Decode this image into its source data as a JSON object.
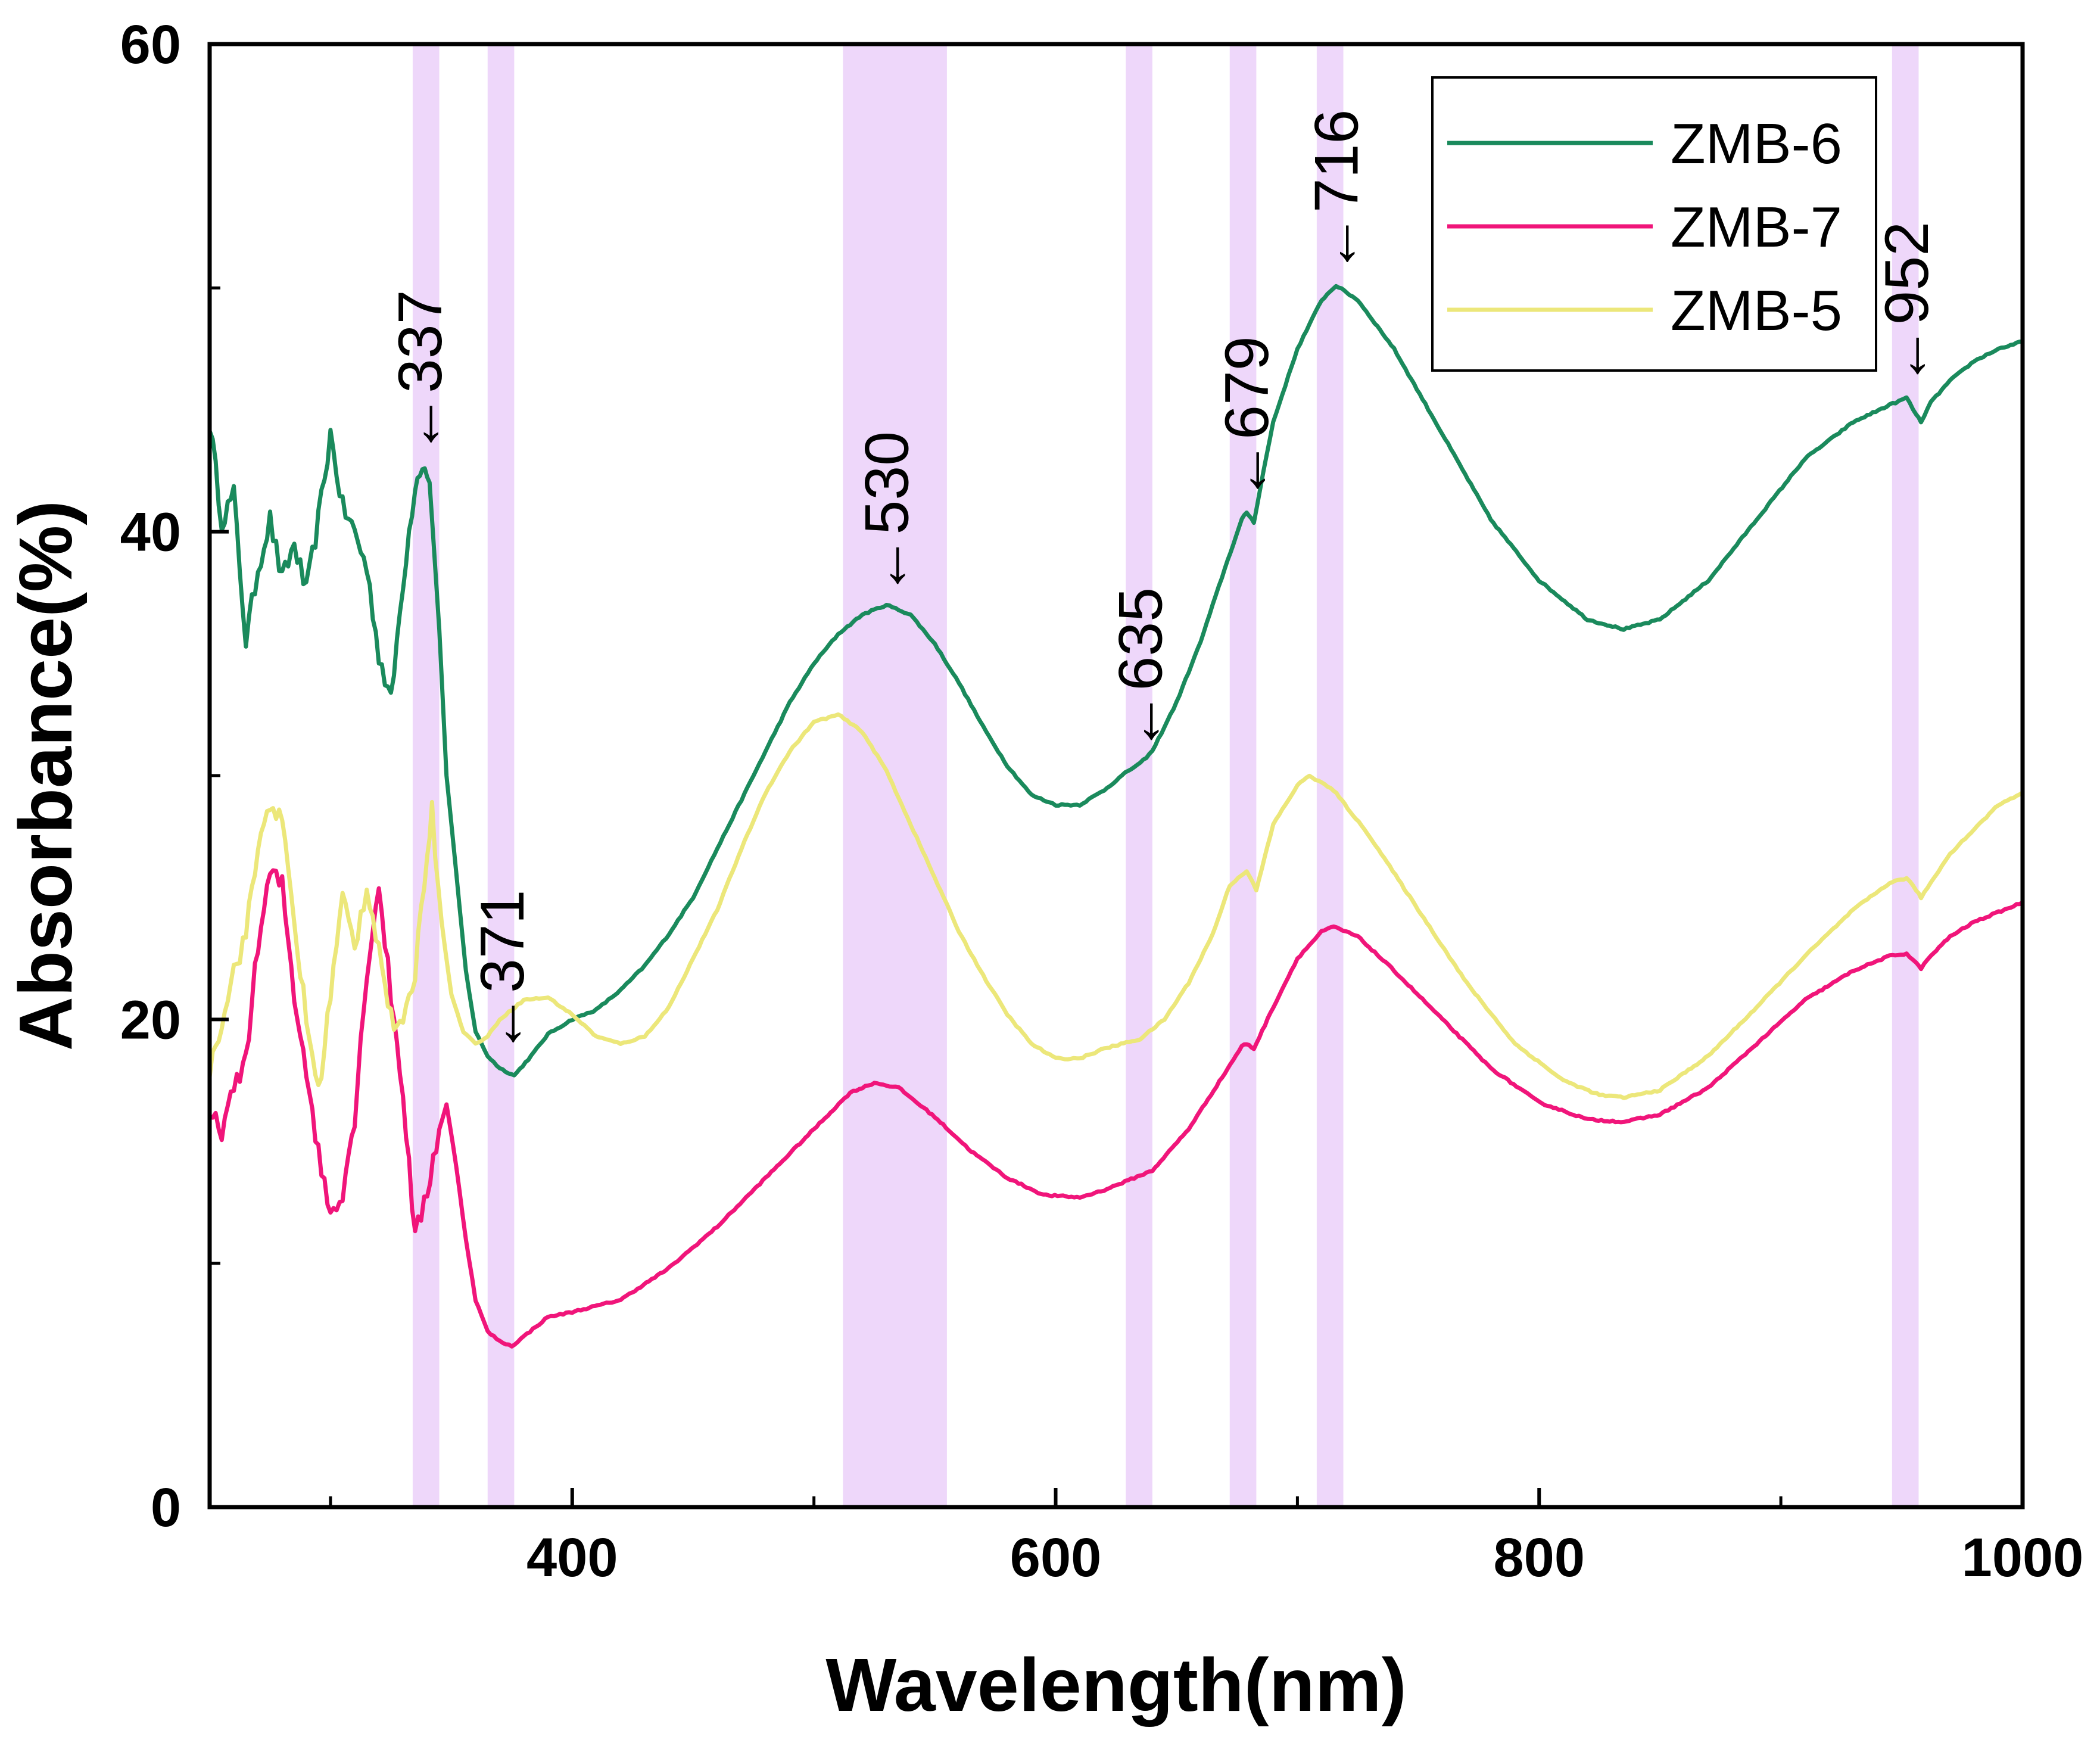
{
  "chart_data": {
    "type": "line",
    "title": "",
    "xlabel": "Wavelength(nm)",
    "ylabel": "Absorbance(%)",
    "xlim": [
      250,
      1000
    ],
    "ylim": [
      0,
      60
    ],
    "x_ticks": [
      400,
      600,
      800,
      1000
    ],
    "y_ticks": [
      0,
      20,
      40,
      60
    ],
    "x_minor_ticks": [
      300,
      500,
      700,
      900
    ],
    "y_minor_ticks": [
      10,
      30,
      50
    ],
    "x_tick_labels": [
      "400",
      "600",
      "800",
      "1000"
    ],
    "y_tick_labels": [
      "0",
      "20",
      "40",
      "60"
    ],
    "grid": false,
    "legend_position": "top-right",
    "highlight_bands": [
      {
        "from": 334,
        "to": 345
      },
      {
        "from": 365,
        "to": 376
      },
      {
        "from": 512,
        "to": 555
      },
      {
        "from": 629,
        "to": 640
      },
      {
        "from": 672,
        "to": 683
      },
      {
        "from": 708,
        "to": 719
      },
      {
        "from": 946,
        "to": 957
      }
    ],
    "series": [
      {
        "name": "ZMB-6",
        "color": "#1a8a5c",
        "noisy_until": 340,
        "points": [
          [
            250,
            44.5
          ],
          [
            255,
            40.5
          ],
          [
            260,
            41.5
          ],
          [
            265,
            35.5
          ],
          [
            270,
            38.5
          ],
          [
            275,
            40.5
          ],
          [
            280,
            38
          ],
          [
            285,
            39.5
          ],
          [
            290,
            37.5
          ],
          [
            295,
            40.5
          ],
          [
            300,
            44
          ],
          [
            305,
            41
          ],
          [
            310,
            40
          ],
          [
            315,
            38.5
          ],
          [
            320,
            35
          ],
          [
            325,
            33
          ],
          [
            330,
            38
          ],
          [
            335,
            42
          ],
          [
            338,
            42.8
          ],
          [
            341,
            42
          ],
          [
            345,
            36
          ],
          [
            348,
            30
          ],
          [
            352,
            26
          ],
          [
            356,
            22
          ],
          [
            360,
            19.5
          ],
          [
            365,
            18.5
          ],
          [
            370,
            18
          ],
          [
            376,
            17.7
          ],
          [
            383,
            18.5
          ],
          [
            390,
            19.4
          ],
          [
            400,
            20
          ],
          [
            410,
            20.4
          ],
          [
            420,
            21.2
          ],
          [
            430,
            22.2
          ],
          [
            440,
            23.5
          ],
          [
            450,
            25
          ],
          [
            460,
            27
          ],
          [
            470,
            29
          ],
          [
            480,
            31
          ],
          [
            490,
            33
          ],
          [
            500,
            34.6
          ],
          [
            510,
            35.8
          ],
          [
            520,
            36.6
          ],
          [
            530,
            37
          ],
          [
            540,
            36.6
          ],
          [
            550,
            35.4
          ],
          [
            560,
            33.8
          ],
          [
            570,
            32
          ],
          [
            580,
            30.4
          ],
          [
            590,
            29.2
          ],
          [
            600,
            28.8
          ],
          [
            610,
            28.8
          ],
          [
            620,
            29.4
          ],
          [
            630,
            30.2
          ],
          [
            635,
            30.5
          ],
          [
            640,
            31
          ],
          [
            650,
            33
          ],
          [
            660,
            35.5
          ],
          [
            670,
            38.5
          ],
          [
            677,
            40.5
          ],
          [
            679,
            40.8
          ],
          [
            682,
            40.4
          ],
          [
            686,
            42.5
          ],
          [
            690,
            44.5
          ],
          [
            700,
            47.5
          ],
          [
            710,
            49.5
          ],
          [
            716,
            50.1
          ],
          [
            725,
            49.5
          ],
          [
            740,
            47.5
          ],
          [
            760,
            44
          ],
          [
            780,
            40.5
          ],
          [
            800,
            38
          ],
          [
            820,
            36.4
          ],
          [
            835,
            36
          ],
          [
            850,
            36.4
          ],
          [
            870,
            38
          ],
          [
            890,
            40.5
          ],
          [
            910,
            43
          ],
          [
            930,
            44.5
          ],
          [
            945,
            45.2
          ],
          [
            950,
            45.4
          ],
          [
            952,
            45.5
          ],
          [
            956,
            44.8
          ],
          [
            958,
            44.5
          ],
          [
            962,
            45.3
          ],
          [
            970,
            46.2
          ],
          [
            980,
            47
          ],
          [
            990,
            47.5
          ],
          [
            1000,
            47.8
          ]
        ]
      },
      {
        "name": "ZMB-7",
        "color": "#f0157a",
        "noisy_until": 345,
        "points": [
          [
            250,
            16
          ],
          [
            255,
            15.5
          ],
          [
            260,
            17
          ],
          [
            265,
            18.5
          ],
          [
            270,
            23
          ],
          [
            275,
            26
          ],
          [
            280,
            25.5
          ],
          [
            285,
            21
          ],
          [
            290,
            18
          ],
          [
            295,
            14.5
          ],
          [
            300,
            12
          ],
          [
            305,
            13
          ],
          [
            310,
            16
          ],
          [
            315,
            22
          ],
          [
            320,
            25.5
          ],
          [
            325,
            21
          ],
          [
            330,
            17
          ],
          [
            335,
            11
          ],
          [
            340,
            13
          ],
          [
            345,
            15.5
          ],
          [
            348,
            16.5
          ],
          [
            352,
            14
          ],
          [
            356,
            11
          ],
          [
            360,
            8.5
          ],
          [
            365,
            7.2
          ],
          [
            370,
            6.8
          ],
          [
            375,
            6.6
          ],
          [
            380,
            7
          ],
          [
            390,
            7.8
          ],
          [
            400,
            8
          ],
          [
            420,
            8.5
          ],
          [
            440,
            9.8
          ],
          [
            460,
            11.5
          ],
          [
            480,
            13.5
          ],
          [
            500,
            15.5
          ],
          [
            515,
            17
          ],
          [
            525,
            17.4
          ],
          [
            535,
            17.2
          ],
          [
            550,
            16
          ],
          [
            565,
            14.6
          ],
          [
            580,
            13.5
          ],
          [
            595,
            12.8
          ],
          [
            610,
            12.7
          ],
          [
            620,
            13
          ],
          [
            630,
            13.4
          ],
          [
            640,
            13.8
          ],
          [
            655,
            15.5
          ],
          [
            670,
            17.8
          ],
          [
            677,
            18.9
          ],
          [
            679,
            19
          ],
          [
            682,
            18.8
          ],
          [
            690,
            20.5
          ],
          [
            700,
            22.5
          ],
          [
            710,
            23.6
          ],
          [
            715,
            23.8
          ],
          [
            725,
            23.4
          ],
          [
            740,
            22
          ],
          [
            760,
            20
          ],
          [
            780,
            18
          ],
          [
            800,
            16.6
          ],
          [
            820,
            15.9
          ],
          [
            835,
            15.8
          ],
          [
            850,
            16.1
          ],
          [
            870,
            17.2
          ],
          [
            890,
            19
          ],
          [
            910,
            20.8
          ],
          [
            930,
            22
          ],
          [
            945,
            22.6
          ],
          [
            952,
            22.7
          ],
          [
            956,
            22.3
          ],
          [
            958,
            22.1
          ],
          [
            962,
            22.6
          ],
          [
            970,
            23.4
          ],
          [
            980,
            24
          ],
          [
            990,
            24.4
          ],
          [
            1000,
            24.8
          ]
        ]
      },
      {
        "name": "ZMB-5",
        "color": "#ece77a",
        "noisy_until": 345,
        "points": [
          [
            250,
            18
          ],
          [
            255,
            20
          ],
          [
            260,
            22
          ],
          [
            265,
            23.5
          ],
          [
            270,
            27
          ],
          [
            275,
            29
          ],
          [
            280,
            28
          ],
          [
            285,
            24
          ],
          [
            290,
            20
          ],
          [
            295,
            17
          ],
          [
            300,
            21
          ],
          [
            305,
            25
          ],
          [
            310,
            23
          ],
          [
            315,
            25.5
          ],
          [
            320,
            23
          ],
          [
            325,
            20
          ],
          [
            330,
            19.5
          ],
          [
            335,
            22
          ],
          [
            340,
            27
          ],
          [
            342,
            28.5
          ],
          [
            346,
            24
          ],
          [
            350,
            21
          ],
          [
            355,
            19.5
          ],
          [
            360,
            19
          ],
          [
            365,
            19.3
          ],
          [
            370,
            20
          ],
          [
            380,
            20.8
          ],
          [
            390,
            20.9
          ],
          [
            400,
            20.2
          ],
          [
            410,
            19.3
          ],
          [
            420,
            19
          ],
          [
            430,
            19.3
          ],
          [
            440,
            20.5
          ],
          [
            450,
            22.5
          ],
          [
            460,
            24.5
          ],
          [
            470,
            27
          ],
          [
            480,
            29.3
          ],
          [
            490,
            31
          ],
          [
            500,
            32.2
          ],
          [
            510,
            32.5
          ],
          [
            520,
            31.8
          ],
          [
            530,
            30.2
          ],
          [
            540,
            28
          ],
          [
            550,
            25.8
          ],
          [
            560,
            23.6
          ],
          [
            570,
            21.8
          ],
          [
            580,
            20.2
          ],
          [
            590,
            19
          ],
          [
            600,
            18.4
          ],
          [
            610,
            18.4
          ],
          [
            620,
            18.8
          ],
          [
            635,
            19.2
          ],
          [
            645,
            20
          ],
          [
            655,
            21.5
          ],
          [
            665,
            23.5
          ],
          [
            672,
            25.5
          ],
          [
            679,
            26.1
          ],
          [
            683,
            25.3
          ],
          [
            690,
            28
          ],
          [
            700,
            29.6
          ],
          [
            705,
            30
          ],
          [
            715,
            29.4
          ],
          [
            730,
            27.5
          ],
          [
            750,
            24.5
          ],
          [
            770,
            21.5
          ],
          [
            790,
            19
          ],
          [
            810,
            17.5
          ],
          [
            825,
            16.9
          ],
          [
            835,
            16.8
          ],
          [
            850,
            17.1
          ],
          [
            870,
            18.5
          ],
          [
            890,
            20.5
          ],
          [
            910,
            22.6
          ],
          [
            930,
            24.5
          ],
          [
            945,
            25.6
          ],
          [
            952,
            25.8
          ],
          [
            956,
            25.3
          ],
          [
            958,
            25
          ],
          [
            962,
            25.6
          ],
          [
            970,
            26.8
          ],
          [
            980,
            27.8
          ],
          [
            990,
            28.8
          ],
          [
            1000,
            29.3
          ]
        ]
      }
    ],
    "annotations": [
      {
        "label": "←337",
        "x": 337,
        "y": 42.8
      },
      {
        "label": "←371",
        "x": 371,
        "y": 18.2
      },
      {
        "label": "←530",
        "x": 530,
        "y": 37.0
      },
      {
        "label": "←635",
        "x": 635,
        "y": 30.6
      },
      {
        "label": "←679",
        "x": 679,
        "y": 40.9
      },
      {
        "label": "←716",
        "x": 716,
        "y": 50.2
      },
      {
        "label": "←952",
        "x": 952,
        "y": 45.6
      }
    ]
  },
  "colors": {
    "band": "#eed7fa",
    "axis": "#000000"
  }
}
